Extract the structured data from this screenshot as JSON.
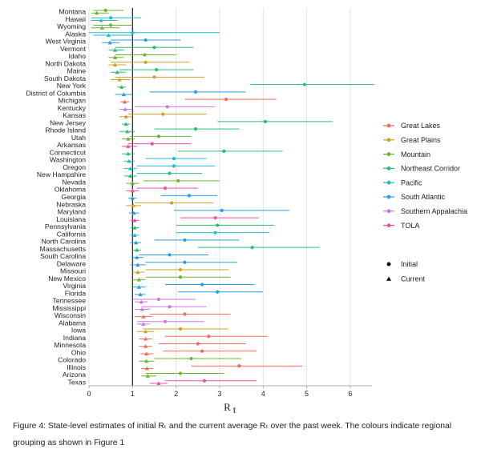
{
  "chart_data": {
    "type": "scatter",
    "xlabel": "R",
    "xlabel_sub": "t",
    "xlim": [
      0,
      6.5
    ],
    "xticks": [
      "0",
      "1",
      "2",
      "3",
      "4",
      "5",
      "6"
    ],
    "reference_line": 1,
    "grid": true,
    "legend_position": "right",
    "legend": {
      "regions": [
        {
          "name": "Great Lakes",
          "color": "#f26b5b"
        },
        {
          "name": "Great Plains",
          "color": "#c9a227"
        },
        {
          "name": "Mountain",
          "color": "#6ab42d"
        },
        {
          "name": "Northeast Corridor",
          "color": "#2bbd72"
        },
        {
          "name": "Pacific",
          "color": "#21bcc9"
        },
        {
          "name": "South Atlantic",
          "color": "#2a9de0"
        },
        {
          "name": "Southern Appalachia",
          "color": "#c878e6"
        },
        {
          "name": "TOLA",
          "color": "#ea4fa9"
        }
      ],
      "markers": [
        {
          "name": "Initial",
          "shape": "circle"
        },
        {
          "name": "Current",
          "shape": "triangle"
        }
      ]
    },
    "states": [
      {
        "name": "Montana",
        "region": "Mountain",
        "initial": 0.38,
        "initial_ci": [
          0.1,
          0.8
        ],
        "current": 0.18,
        "current_ci": [
          0.05,
          0.45
        ]
      },
      {
        "name": "Hawaii",
        "region": "Pacific",
        "initial": 0.5,
        "initial_ci": [
          0.05,
          1.2
        ],
        "current": 0.28,
        "current_ci": [
          0.05,
          0.65
        ]
      },
      {
        "name": "Wyoming",
        "region": "Mountain",
        "initial": 0.5,
        "initial_ci": [
          0.1,
          1.0
        ],
        "current": 0.3,
        "current_ci": [
          0.05,
          0.7
        ]
      },
      {
        "name": "Alaska",
        "region": "Pacific",
        "initial": 1.0,
        "initial_ci": [
          0.0,
          3.0
        ],
        "current": 0.45,
        "current_ci": [
          0.1,
          1.0
        ]
      },
      {
        "name": "West Virginia",
        "region": "South Atlantic",
        "initial": 1.3,
        "initial_ci": [
          0.5,
          2.1
        ],
        "current": 0.48,
        "current_ci": [
          0.3,
          0.7
        ]
      },
      {
        "name": "Vermont",
        "region": "Northeast Corridor",
        "initial": 1.5,
        "initial_ci": [
          0.6,
          2.4
        ],
        "current": 0.6,
        "current_ci": [
          0.45,
          0.8
        ]
      },
      {
        "name": "Idaho",
        "region": "Mountain",
        "initial": 1.28,
        "initial_ci": [
          0.6,
          2.0
        ],
        "current": 0.6,
        "current_ci": [
          0.45,
          0.8
        ]
      },
      {
        "name": "North Dakota",
        "region": "Great Plains",
        "initial": 1.3,
        "initial_ci": [
          0.5,
          2.3
        ],
        "current": 0.6,
        "current_ci": [
          0.45,
          0.85
        ]
      },
      {
        "name": "Maine",
        "region": "Northeast Corridor",
        "initial": 1.55,
        "initial_ci": [
          0.7,
          2.4
        ],
        "current": 0.65,
        "current_ci": [
          0.5,
          0.85
        ]
      },
      {
        "name": "South Dakota",
        "region": "Great Plains",
        "initial": 1.5,
        "initial_ci": [
          0.6,
          2.65
        ],
        "current": 0.7,
        "current_ci": [
          0.5,
          0.95
        ]
      },
      {
        "name": "New York",
        "region": "Northeast Corridor",
        "initial": 4.95,
        "initial_ci": [
          3.7,
          6.55
        ],
        "current": 0.75,
        "current_ci": [
          0.65,
          0.85
        ]
      },
      {
        "name": "District of Columbia",
        "region": "South Atlantic",
        "initial": 2.45,
        "initial_ci": [
          1.4,
          3.6
        ],
        "current": 0.8,
        "current_ci": [
          0.6,
          1.0
        ]
      },
      {
        "name": "Michigan",
        "region": "Great Lakes",
        "initial": 3.15,
        "initial_ci": [
          2.2,
          4.3
        ],
        "current": 0.82,
        "current_ci": [
          0.72,
          0.92
        ]
      },
      {
        "name": "Kentucky",
        "region": "Southern Appalachia",
        "initial": 1.8,
        "initial_ci": [
          1.05,
          2.9
        ],
        "current": 0.83,
        "current_ci": [
          0.7,
          0.98
        ]
      },
      {
        "name": "Kansas",
        "region": "Great Plains",
        "initial": 1.7,
        "initial_ci": [
          0.9,
          2.7
        ],
        "current": 0.85,
        "current_ci": [
          0.7,
          1.0
        ]
      },
      {
        "name": "New Jersey",
        "region": "Northeast Corridor",
        "initial": 4.05,
        "initial_ci": [
          2.95,
          5.6
        ],
        "current": 0.85,
        "current_ci": [
          0.75,
          0.95
        ]
      },
      {
        "name": "Rhode Island",
        "region": "Northeast Corridor",
        "initial": 2.45,
        "initial_ci": [
          1.5,
          3.45
        ],
        "current": 0.88,
        "current_ci": [
          0.7,
          1.05
        ]
      },
      {
        "name": "Utah",
        "region": "Mountain",
        "initial": 1.6,
        "initial_ci": [
          0.95,
          2.35
        ],
        "current": 0.9,
        "current_ci": [
          0.75,
          1.05
        ]
      },
      {
        "name": "Arkansas",
        "region": "TOLA",
        "initial": 1.45,
        "initial_ci": [
          0.9,
          2.35
        ],
        "current": 0.9,
        "current_ci": [
          0.75,
          1.1
        ]
      },
      {
        "name": "Connecticut",
        "region": "Northeast Corridor",
        "initial": 3.1,
        "initial_ci": [
          2.05,
          4.45
        ],
        "current": 0.9,
        "current_ci": [
          0.75,
          1.05
        ]
      },
      {
        "name": "Washington",
        "region": "Pacific",
        "initial": 1.95,
        "initial_ci": [
          1.3,
          2.7
        ],
        "current": 0.92,
        "current_ci": [
          0.8,
          1.05
        ]
      },
      {
        "name": "Oregon",
        "region": "Pacific",
        "initial": 1.95,
        "initial_ci": [
          1.1,
          2.9
        ],
        "current": 0.95,
        "current_ci": [
          0.8,
          1.1
        ]
      },
      {
        "name": "New Hampshire",
        "region": "Northeast Corridor",
        "initial": 1.85,
        "initial_ci": [
          1.1,
          2.6
        ],
        "current": 0.95,
        "current_ci": [
          0.8,
          1.1
        ]
      },
      {
        "name": "Nevada",
        "region": "Mountain",
        "initial": 2.05,
        "initial_ci": [
          1.25,
          3.0
        ],
        "current": 1.0,
        "current_ci": [
          0.85,
          1.15
        ]
      },
      {
        "name": "Oklahoma",
        "region": "TOLA",
        "initial": 1.75,
        "initial_ci": [
          1.1,
          2.5
        ],
        "current": 1.0,
        "current_ci": [
          0.85,
          1.15
        ]
      },
      {
        "name": "Georgia",
        "region": "South Atlantic",
        "initial": 2.3,
        "initial_ci": [
          1.65,
          2.95
        ],
        "current": 1.0,
        "current_ci": [
          0.9,
          1.1
        ]
      },
      {
        "name": "Nebraska",
        "region": "Great Plains",
        "initial": 1.9,
        "initial_ci": [
          1.05,
          2.85
        ],
        "current": 1.02,
        "current_ci": [
          0.85,
          1.2
        ]
      },
      {
        "name": "Maryland",
        "region": "South Atlantic",
        "initial": 3.05,
        "initial_ci": [
          1.95,
          4.6
        ],
        "current": 1.03,
        "current_ci": [
          0.92,
          1.15
        ]
      },
      {
        "name": "Louisiana",
        "region": "TOLA",
        "initial": 2.9,
        "initial_ci": [
          2.1,
          3.9
        ],
        "current": 1.05,
        "current_ci": [
          0.95,
          1.15
        ]
      },
      {
        "name": "Pennsylvania",
        "region": "Northeast Corridor",
        "initial": 2.95,
        "initial_ci": [
          2.0,
          4.25
        ],
        "current": 1.05,
        "current_ci": [
          0.95,
          1.15
        ]
      },
      {
        "name": "California",
        "region": "Pacific",
        "initial": 2.9,
        "initial_ci": [
          2.0,
          4.15
        ],
        "current": 1.05,
        "current_ci": [
          0.95,
          1.15
        ]
      },
      {
        "name": "North Carolina",
        "region": "South Atlantic",
        "initial": 2.2,
        "initial_ci": [
          1.5,
          3.45
        ],
        "current": 1.08,
        "current_ci": [
          0.95,
          1.2
        ]
      },
      {
        "name": "Massachusetts",
        "region": "Northeast Corridor",
        "initial": 3.75,
        "initial_ci": [
          2.5,
          5.3
        ],
        "current": 1.1,
        "current_ci": [
          1.0,
          1.2
        ]
      },
      {
        "name": "South Carolina",
        "region": "South Atlantic",
        "initial": 1.85,
        "initial_ci": [
          1.15,
          2.75
        ],
        "current": 1.1,
        "current_ci": [
          0.98,
          1.25
        ]
      },
      {
        "name": "Delaware",
        "region": "South Atlantic",
        "initial": 2.2,
        "initial_ci": [
          1.3,
          3.4
        ],
        "current": 1.12,
        "current_ci": [
          0.95,
          1.3
        ]
      },
      {
        "name": "Missouri",
        "region": "Great Plains",
        "initial": 2.1,
        "initial_ci": [
          1.3,
          3.2
        ],
        "current": 1.12,
        "current_ci": [
          0.98,
          1.28
        ]
      },
      {
        "name": "New Mexico",
        "region": "Mountain",
        "initial": 2.1,
        "initial_ci": [
          1.3,
          3.25
        ],
        "current": 1.15,
        "current_ci": [
          1.0,
          1.3
        ]
      },
      {
        "name": "Virginia",
        "region": "South Atlantic",
        "initial": 2.6,
        "initial_ci": [
          1.75,
          3.8
        ],
        "current": 1.15,
        "current_ci": [
          1.0,
          1.3
        ]
      },
      {
        "name": "Florida",
        "region": "South Atlantic",
        "initial": 2.95,
        "initial_ci": [
          2.05,
          4.0
        ],
        "current": 1.18,
        "current_ci": [
          1.05,
          1.3
        ]
      },
      {
        "name": "Tennessee",
        "region": "Southern Appalachia",
        "initial": 1.6,
        "initial_ci": [
          1.0,
          2.45
        ],
        "current": 1.2,
        "current_ci": [
          1.05,
          1.35
        ]
      },
      {
        "name": "Mississippi",
        "region": "Southern Appalachia",
        "initial": 1.85,
        "initial_ci": [
          1.2,
          2.7
        ],
        "current": 1.22,
        "current_ci": [
          1.05,
          1.4
        ]
      },
      {
        "name": "Wisconsin",
        "region": "Great Lakes",
        "initial": 2.2,
        "initial_ci": [
          1.4,
          3.25
        ],
        "current": 1.25,
        "current_ci": [
          1.05,
          1.45
        ]
      },
      {
        "name": "Alabama",
        "region": "Southern Appalachia",
        "initial": 1.75,
        "initial_ci": [
          1.1,
          2.65
        ],
        "current": 1.25,
        "current_ci": [
          1.1,
          1.4
        ]
      },
      {
        "name": "Iowa",
        "region": "Great Plains",
        "initial": 2.1,
        "initial_ci": [
          1.25,
          3.2
        ],
        "current": 1.3,
        "current_ci": [
          1.1,
          1.5
        ]
      },
      {
        "name": "Indiana",
        "region": "Great Lakes",
        "initial": 2.75,
        "initial_ci": [
          1.75,
          4.1
        ],
        "current": 1.3,
        "current_ci": [
          1.15,
          1.45
        ]
      },
      {
        "name": "Minnesota",
        "region": "Great Lakes",
        "initial": 2.5,
        "initial_ci": [
          1.6,
          3.6
        ],
        "current": 1.3,
        "current_ci": [
          1.15,
          1.45
        ]
      },
      {
        "name": "Ohio",
        "region": "Great Lakes",
        "initial": 2.6,
        "initial_ci": [
          1.7,
          3.85
        ],
        "current": 1.32,
        "current_ci": [
          1.18,
          1.48
        ]
      },
      {
        "name": "Colorado",
        "region": "Mountain",
        "initial": 2.35,
        "initial_ci": [
          1.5,
          3.5
        ],
        "current": 1.32,
        "current_ci": [
          1.15,
          1.5
        ]
      },
      {
        "name": "Illinois",
        "region": "Great Lakes",
        "initial": 3.45,
        "initial_ci": [
          2.35,
          4.9
        ],
        "current": 1.33,
        "current_ci": [
          1.2,
          1.48
        ]
      },
      {
        "name": "Arizona",
        "region": "Mountain",
        "initial": 2.1,
        "initial_ci": [
          1.3,
          3.1
        ],
        "current": 1.35,
        "current_ci": [
          1.2,
          1.55
        ]
      },
      {
        "name": "Texas",
        "region": "TOLA",
        "initial": 2.65,
        "initial_ci": [
          1.75,
          3.85
        ],
        "current": 1.6,
        "current_ci": [
          1.4,
          1.8
        ]
      }
    ]
  },
  "caption": {
    "text": "Figure 4: State-level estimates of initial Rₜ and the current average Rₜ over the past week. The colours indicate regional grouping as shown in Figure 1"
  }
}
